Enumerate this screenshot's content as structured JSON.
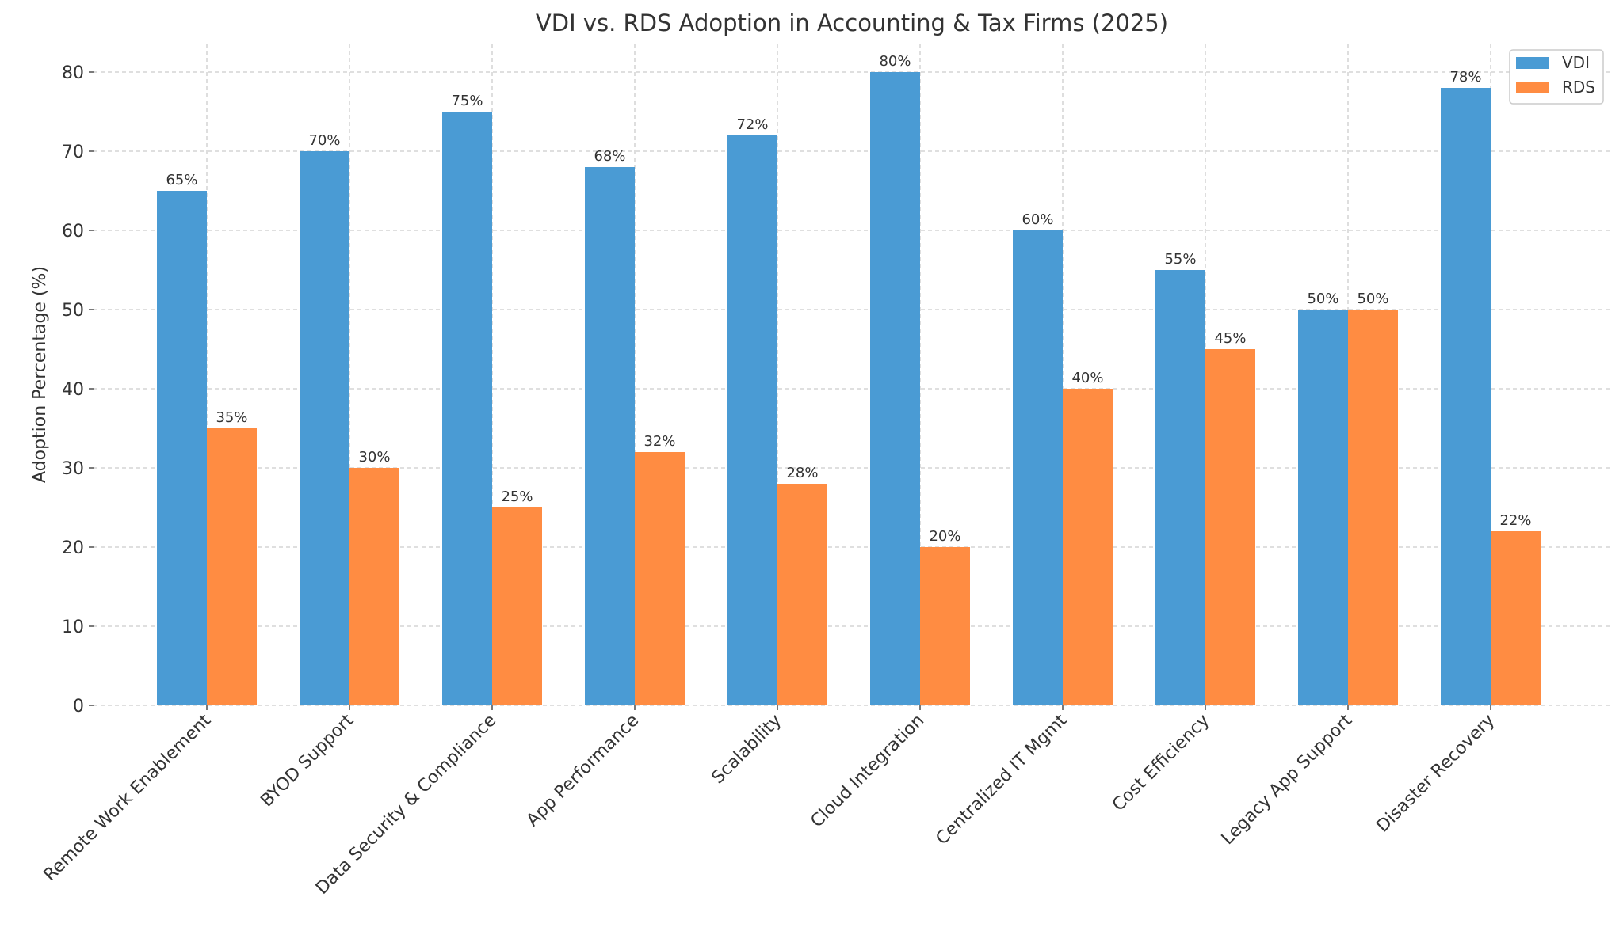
{
  "chart_data": {
    "type": "bar",
    "title": "VDI vs. RDS Adoption in Accounting & Tax Firms (2025)",
    "xlabel": "",
    "ylabel": "Adoption Percentage (%)",
    "ylim": [
      0,
      84
    ],
    "yticks": [
      0,
      10,
      20,
      30,
      40,
      50,
      60,
      70,
      80
    ],
    "grid": true,
    "legend": "top-right",
    "categories": [
      "Remote Work Enablement",
      "BYOD Support",
      "Data Security & Compliance",
      "App Performance",
      "Scalability",
      "Cloud Integration",
      "Centralized IT Mgmt",
      "Cost Efficiency",
      "Legacy App Support",
      "Disaster Recovery"
    ],
    "series": [
      {
        "name": "VDI",
        "color": "#4a9bd4",
        "values": [
          65,
          70,
          75,
          68,
          72,
          80,
          60,
          55,
          50,
          78
        ]
      },
      {
        "name": "RDS",
        "color": "#ff8c42",
        "values": [
          35,
          30,
          25,
          32,
          28,
          20,
          40,
          45,
          50,
          22
        ]
      }
    ],
    "value_label_suffix": "%"
  }
}
